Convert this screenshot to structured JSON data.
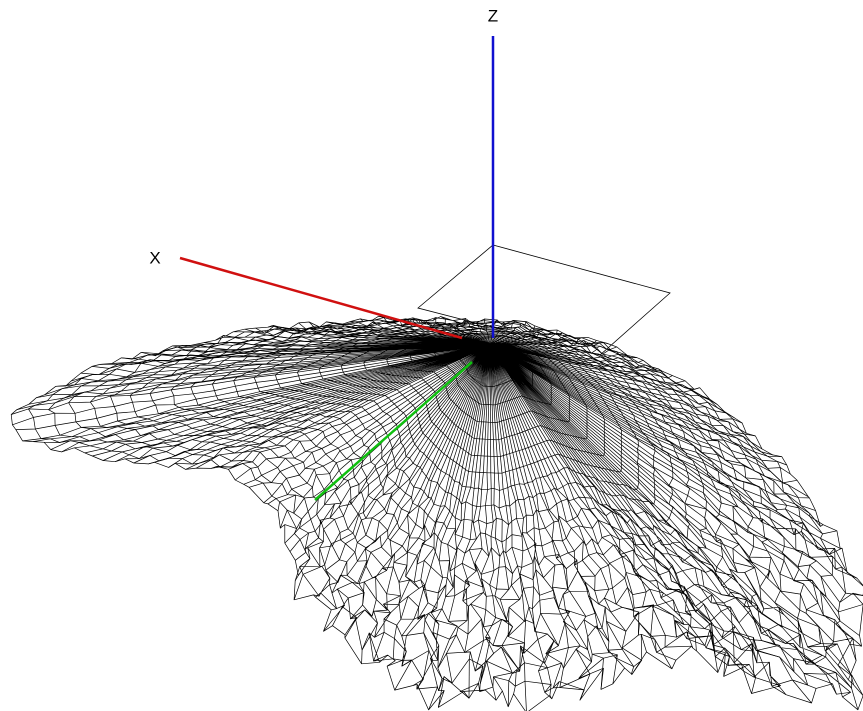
{
  "axes": {
    "z_label": "Z",
    "x_label": "X"
  }
}
